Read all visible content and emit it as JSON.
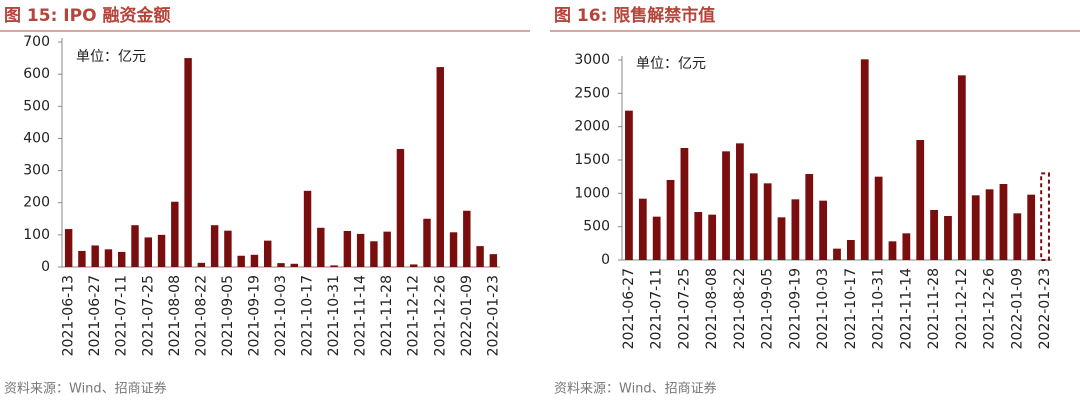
{
  "chart_data": [
    {
      "type": "bar",
      "title": "图 15:  IPO 融资金额",
      "annotation": "单位：亿元",
      "source": "资料来源：Wind、招商证券",
      "categories": [
        "2021-06-13",
        null,
        "2021-06-27",
        null,
        "2021-07-11",
        null,
        "2021-07-25",
        null,
        "2021-08-08",
        null,
        "2021-08-22",
        null,
        "2021-09-05",
        null,
        "2021-09-19",
        null,
        "2021-10-03",
        null,
        "2021-10-17",
        null,
        "2021-10-31",
        null,
        "2021-11-14",
        null,
        "2021-11-28",
        null,
        "2021-12-12",
        null,
        "2021-12-26",
        null,
        "2022-01-09",
        null,
        "2022-01-23"
      ],
      "values": [
        118,
        50,
        67,
        55,
        47,
        130,
        92,
        100,
        203,
        650,
        13,
        130,
        113,
        35,
        38,
        82,
        12,
        10,
        237,
        122,
        5,
        112,
        103,
        80,
        110,
        367,
        8,
        150,
        622,
        108,
        175,
        65,
        40
      ],
      "color": "#7a0d0d",
      "ylim": [
        0,
        700
      ],
      "yticks": [
        0,
        100,
        200,
        300,
        400,
        500,
        600,
        700
      ]
    },
    {
      "type": "bar",
      "title": "图 16:  限售解禁市值",
      "annotation": "单位：亿元",
      "source": "资料来源：Wind、招商证券",
      "categories": [
        "2021-06-27",
        null,
        "2021-07-11",
        null,
        "2021-07-25",
        null,
        "2021-08-08",
        null,
        "2021-08-22",
        null,
        "2021-09-05",
        null,
        "2021-09-19",
        null,
        "2021-10-03",
        null,
        "2021-10-17",
        null,
        "2021-10-31",
        null,
        "2021-11-14",
        null,
        "2021-11-28",
        null,
        "2021-12-12",
        null,
        "2021-12-26",
        null,
        "2022-01-09",
        null,
        "2022-01-23"
      ],
      "values": [
        2240,
        920,
        650,
        1200,
        1680,
        720,
        680,
        1630,
        1750,
        1300,
        1150,
        640,
        910,
        1290,
        890,
        170,
        300,
        3010,
        1250,
        280,
        400,
        1800,
        750,
        660,
        2770,
        970,
        1060,
        1140,
        700,
        980,
        1300
      ],
      "color": "#7a0d0d",
      "dashed_last": true,
      "ylim": [
        0,
        3000
      ],
      "yticks": [
        0,
        500,
        1000,
        1500,
        2000,
        2500,
        3000
      ]
    }
  ]
}
